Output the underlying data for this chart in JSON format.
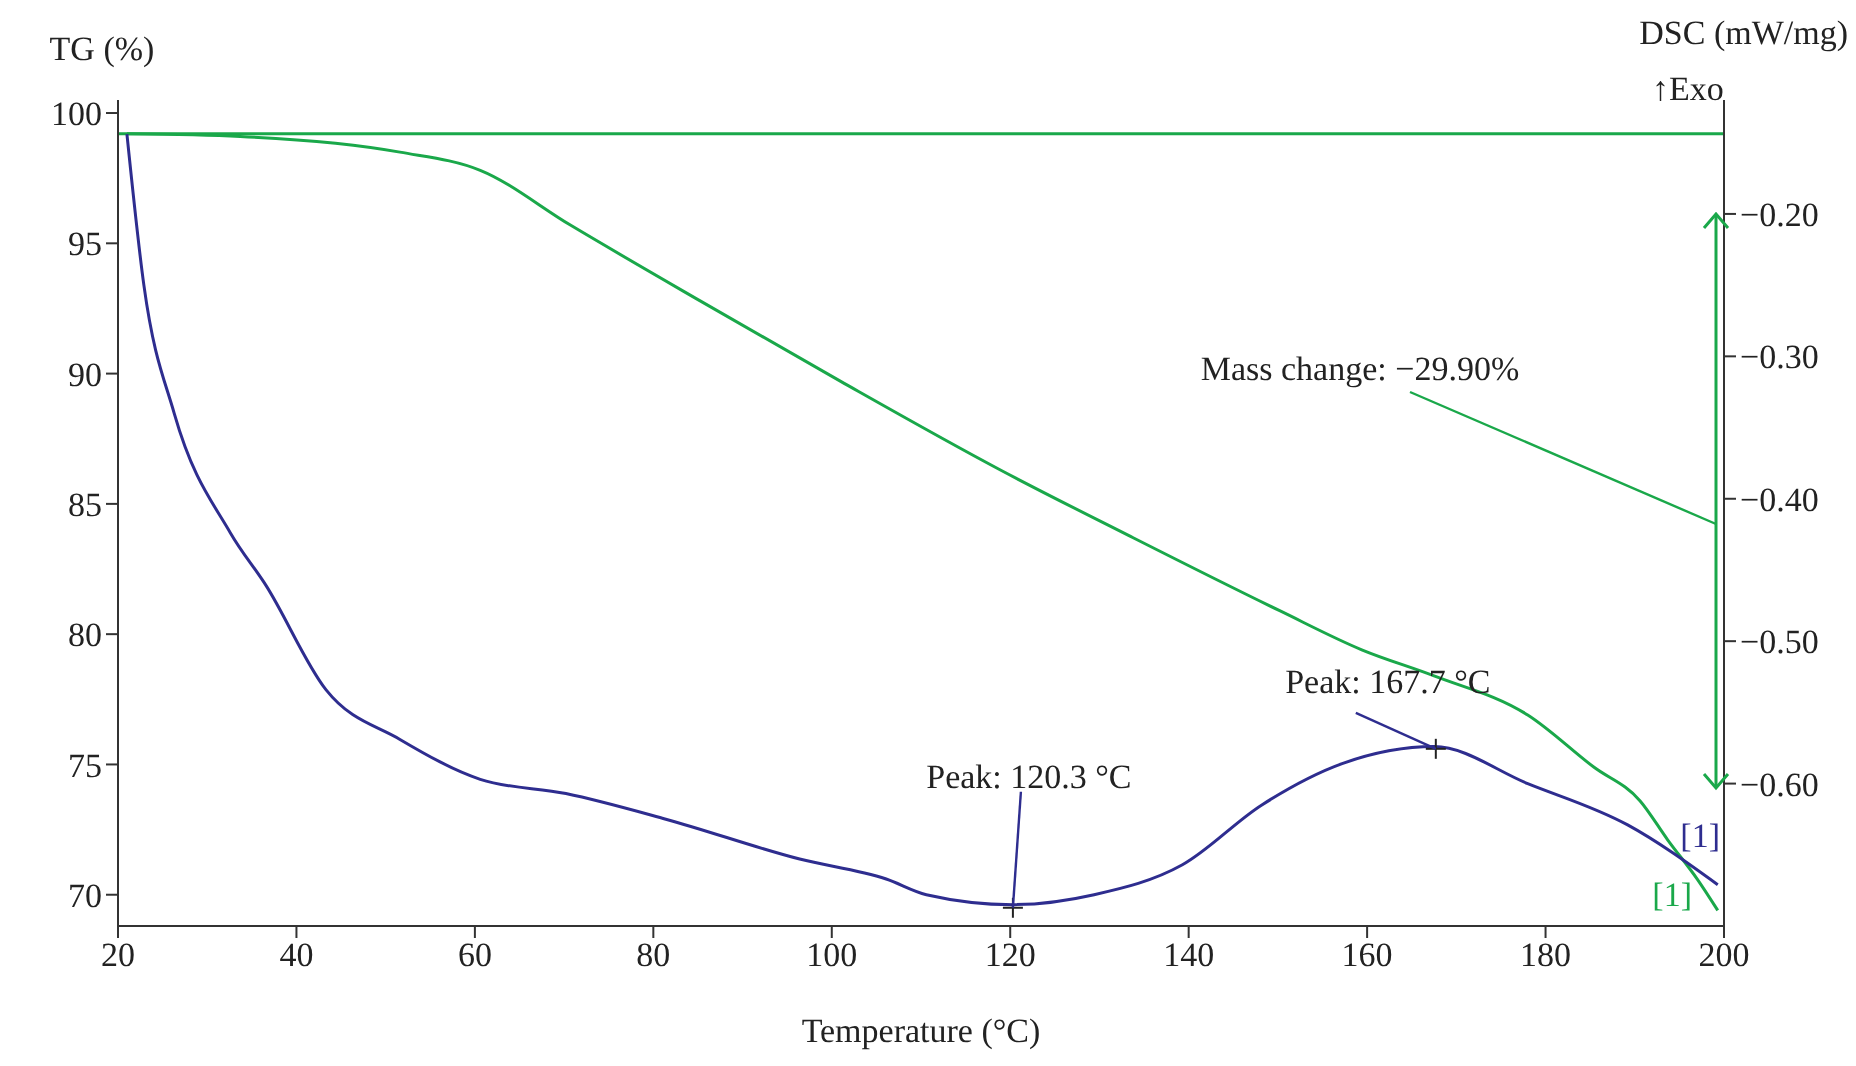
{
  "chart_data": {
    "type": "line",
    "xlabel": "Temperature (°C)",
    "ylabel": "TG (%)",
    "y2label": "DSC (mW/mg)",
    "xlim": [
      20,
      200
    ],
    "xticks": [
      20,
      40,
      60,
      80,
      100,
      120,
      140,
      160,
      180,
      200
    ],
    "ylim": [
      68.8,
      100.5
    ],
    "yticks": [
      70,
      75,
      80,
      85,
      90,
      95,
      100
    ],
    "y2lim": [
      -0.7,
      -0.12
    ],
    "y2ticks": [
      {
        "value": -0.2,
        "label": "−0.20"
      },
      {
        "value": -0.3,
        "label": "−0.30"
      },
      {
        "value": -0.4,
        "label": "−0.40"
      },
      {
        "value": -0.5,
        "label": "−0.50"
      },
      {
        "value": -0.6,
        "label": "−0.60"
      }
    ],
    "marker": "none",
    "line_style": "solid",
    "series": [
      {
        "color": "#1aa84a",
        "x": [
          21,
          33.7,
          51.6,
          60.6,
          70.7,
          85.2,
          101,
          118.9,
          133.2,
          150.2,
          159.4,
          167.5,
          178,
          185.4,
          190.6,
          193.7,
          197,
          199.3
        ],
        "values": [
          99.2,
          99.1,
          98.5,
          97.8,
          95.7,
          92.8,
          89.7,
          86.3,
          83.8,
          80.9,
          79.4,
          78.4,
          76.9,
          74.9,
          73.6,
          72.1,
          70.6,
          69.4
        ]
      },
      {
        "color": "#2e2d8f",
        "axis": "y2",
        "x": [
          21,
          22.9,
          26.3,
          32.6,
          36.6,
          43.3,
          51.6,
          60.6,
          70.2,
          81.4,
          96.4,
          106.1,
          110.6,
          120.3,
          129.4,
          139.3,
          148.2,
          157.2,
          167.5,
          178,
          189.2,
          199.3
        ],
        "values": [
          -0.144,
          -0.25,
          -0.34,
          -0.424,
          -0.461,
          -0.534,
          -0.569,
          -0.597,
          -0.607,
          -0.625,
          -0.653,
          -0.667,
          -0.678,
          -0.685,
          -0.678,
          -0.657,
          -0.615,
          -0.586,
          -0.574,
          -0.6,
          -0.629,
          -0.671
        ]
      }
    ],
    "ref_lines": [
      {
        "axis": "y",
        "value": 99.2,
        "color": "#1aa84a"
      }
    ],
    "annotations": [
      {
        "text": "Peak: 120.3 °C",
        "x": 120.3,
        "y": 69.5
      },
      {
        "text": "Peak: 167.7 °C",
        "x": 167.7,
        "y": 75.6
      },
      "Mass change: −29.90%",
      "↑Exo",
      "[1]",
      "[1]"
    ]
  }
}
